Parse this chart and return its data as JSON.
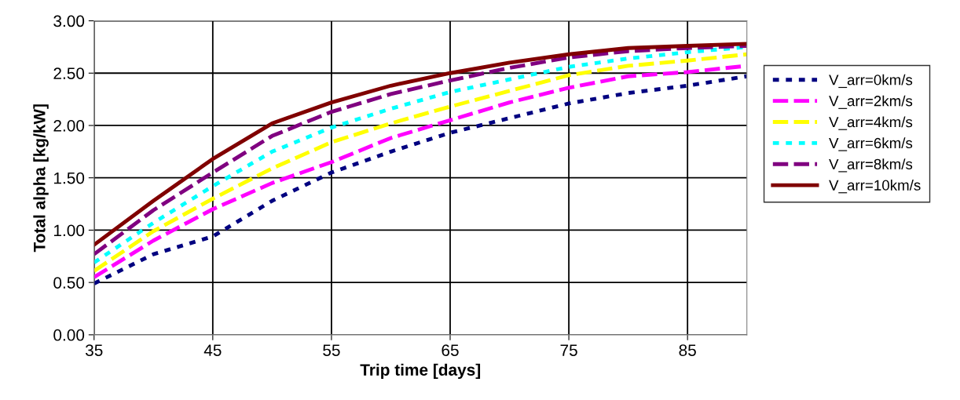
{
  "chart_data": {
    "type": "line",
    "xlabel": "Trip time [days]",
    "ylabel": "Total alpha [kg/kW]",
    "x": [
      35,
      40,
      45,
      50,
      55,
      60,
      65,
      70,
      75,
      80,
      85,
      90
    ],
    "xlim": [
      35,
      90
    ],
    "xticks": [
      35,
      45,
      55,
      65,
      75,
      85
    ],
    "ylim": [
      0,
      3
    ],
    "yticks": [
      {
        "value": 0,
        "label": "0.00"
      },
      {
        "value": 0.5,
        "label": "0.50"
      },
      {
        "value": 1,
        "label": "1.00"
      },
      {
        "value": 1.5,
        "label": "1.50"
      },
      {
        "value": 2,
        "label": "2.00"
      },
      {
        "value": 2.5,
        "label": "2.50"
      },
      {
        "value": 3,
        "label": "3.00"
      }
    ],
    "grid": true,
    "legend": "right",
    "marker": "none",
    "series": [
      {
        "name": "V_arr=0km/s",
        "color": "#000080",
        "line_style": "dotted",
        "values": [
          0.49,
          0.77,
          0.94,
          1.28,
          1.55,
          1.75,
          1.93,
          2.07,
          2.21,
          2.31,
          2.38,
          2.47
        ]
      },
      {
        "name": "V_arr=2km/s",
        "color": "#ff00ff",
        "line_style": "dashed",
        "values": [
          0.55,
          0.9,
          1.2,
          1.45,
          1.65,
          1.88,
          2.05,
          2.22,
          2.36,
          2.47,
          2.51,
          2.57
        ]
      },
      {
        "name": "V_arr=4km/s",
        "color": "#ffff00",
        "line_style": "dashed",
        "values": [
          0.61,
          0.99,
          1.3,
          1.59,
          1.84,
          2.02,
          2.18,
          2.33,
          2.48,
          2.57,
          2.62,
          2.68
        ]
      },
      {
        "name": "V_arr=6km/s",
        "color": "#00ffff",
        "line_style": "dotted",
        "values": [
          0.69,
          1.07,
          1.42,
          1.75,
          1.98,
          2.16,
          2.32,
          2.44,
          2.56,
          2.64,
          2.7,
          2.75
        ]
      },
      {
        "name": "V_arr=8km/s",
        "color": "#800080",
        "line_style": "dashed",
        "values": [
          0.77,
          1.19,
          1.55,
          1.9,
          2.13,
          2.3,
          2.43,
          2.55,
          2.65,
          2.71,
          2.74,
          2.76
        ]
      },
      {
        "name": "V_arr=10km/s",
        "color": "#800000",
        "line_style": "solid",
        "values": [
          0.86,
          1.28,
          1.68,
          2.02,
          2.22,
          2.38,
          2.5,
          2.6,
          2.68,
          2.74,
          2.76,
          2.78
        ]
      }
    ]
  }
}
